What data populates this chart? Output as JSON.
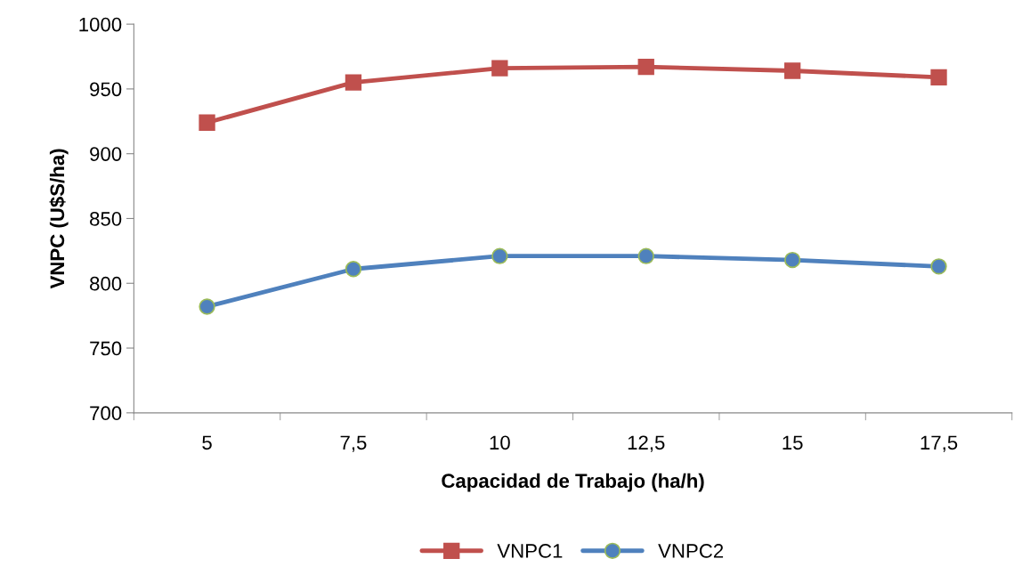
{
  "chart_data": {
    "type": "line",
    "xlabel": "Capacidad de Trabajo (ha/h)",
    "ylabel": "VNPC (U$S/ha)",
    "categories": [
      "5",
      "7,5",
      "10",
      "12,5",
      "15",
      "17,5"
    ],
    "series": [
      {
        "name": "VNPC1",
        "color": "#c0504d",
        "marker": "square",
        "values": [
          924,
          955,
          966,
          967,
          964,
          959
        ]
      },
      {
        "name": "VNPC2",
        "color": "#4f81bd",
        "marker": "circle",
        "values": [
          782,
          811,
          821,
          821,
          818,
          813
        ]
      }
    ],
    "ylim": [
      700,
      1000
    ],
    "yticks": [
      700,
      750,
      800,
      850,
      900,
      950,
      1000
    ],
    "grid": false,
    "legend": "bottom"
  }
}
